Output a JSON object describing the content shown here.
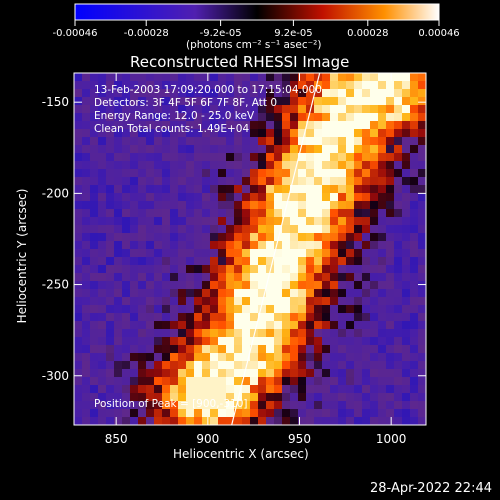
{
  "chart_data": {
    "type": "heatmap",
    "title": "Reconstructed RHESSI Image",
    "xlabel": "Heliocentric X (arcsec)",
    "ylabel": "Heliocentric Y (arcsec)",
    "xlim": [
      827,
      1019
    ],
    "ylim": [
      -327,
      -134
    ],
    "x_ticks": [
      850,
      900,
      950,
      1000
    ],
    "y_ticks": [
      -150,
      -200,
      -250,
      -300
    ],
    "colorbar": {
      "ticks": [
        -0.00046,
        -0.00028,
        -9.2e-05,
        9.2e-05,
        0.00028,
        0.00046
      ],
      "tick_labels": [
        "-0.00046",
        "-0.00028",
        "-9.2e-05",
        "9.2e-05",
        "0.00028",
        "0.00046"
      ],
      "unit_label": "(photons cm⁻² s⁻¹ asec⁻²)",
      "range": [
        -0.00046,
        0.00046
      ]
    },
    "annotations": [
      "13-Feb-2003 17:09:20.000 to 17:15:04.000",
      "Detectors: 3F 4F 5F 6F 7F 8F, Att 0",
      "Energy Range: 12.0 - 25.0 keV",
      "Clean    Total counts: 1.49E+04"
    ],
    "peak_label": "Position of Peak = [900,-310]",
    "peak_position": [
      900,
      -310
    ],
    "limb_line": [
      [
        913,
        -327
      ],
      [
        961,
        -134
      ]
    ],
    "emission_ridge": {
      "description_values": "bright emission band from lower-left to upper-right",
      "points": [
        [
          900,
          -310
        ],
        [
          920,
          -285
        ],
        [
          935,
          -250
        ],
        [
          950,
          -210
        ],
        [
          965,
          -180
        ],
        [
          980,
          -150
        ],
        [
          1000,
          -140
        ]
      ]
    }
  },
  "timestamp": "28-Apr-2022 22:44"
}
